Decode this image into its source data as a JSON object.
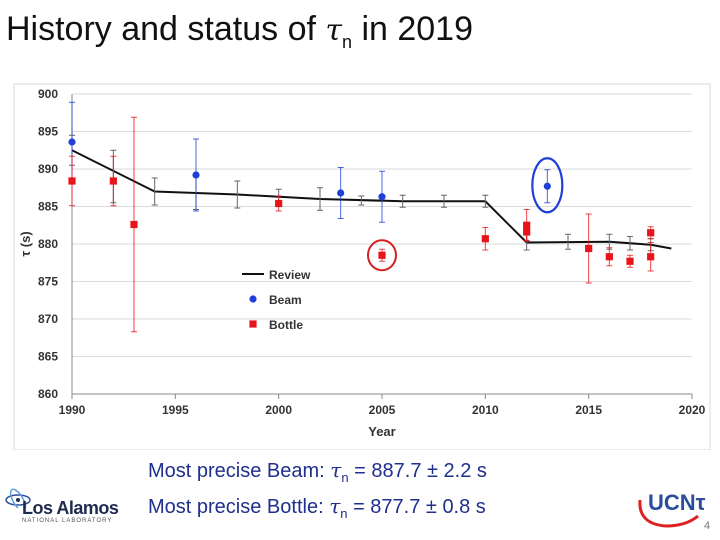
{
  "slide": {
    "title_prefix": "History and status of",
    "title_symbol": "τ",
    "title_sub": "n",
    "title_suffix": "in 2019",
    "page_number": "4"
  },
  "summary": {
    "beam_label": "Most precise Beam:",
    "beam_symbol": "τ",
    "beam_sub": "n",
    "beam_value": "= 887.7 ± 2.2 s",
    "bottle_label": "Most precise Bottle:",
    "bottle_symbol": "τ",
    "bottle_sub": "n",
    "bottle_value": "= 877.7 ± 0.8 s"
  },
  "logos": {
    "lanl_name": "Los Alamos",
    "lanl_sub": "NATIONAL LABORATORY",
    "ucn_text": "UCNτ"
  },
  "colors": {
    "beam": "#1f3fd6",
    "bottle": "#e8141b",
    "review": "#111111",
    "highlight_red": "#d42020",
    "highlight_blue": "#1f3fd6"
  },
  "chart_data": {
    "type": "scatter",
    "title": "",
    "xlabel": "Year",
    "ylabel": "τ (s)",
    "xlim": [
      1990,
      2020
    ],
    "ylim": [
      860,
      900
    ],
    "xticks": [
      1990,
      1995,
      2000,
      2005,
      2010,
      2015,
      2020
    ],
    "yticks": [
      860,
      865,
      870,
      875,
      880,
      885,
      890,
      895,
      900
    ],
    "legend": [
      "Review",
      "Beam",
      "Bottle"
    ],
    "review_line": {
      "name": "Review",
      "x": [
        1990,
        1994,
        1998,
        2002,
        2006,
        2010,
        2012,
        2016,
        2018,
        2019
      ],
      "y": [
        892.5,
        887.0,
        886.6,
        886.0,
        885.7,
        885.7,
        880.2,
        880.3,
        879.9,
        879.4
      ]
    },
    "review_points": {
      "x": [
        1990,
        1992,
        1994,
        1996,
        1998,
        2000,
        2002,
        2004,
        2006,
        2008,
        2010,
        2012,
        2014,
        2016,
        2017,
        2018
      ],
      "y": [
        892.5,
        889.0,
        887.0,
        886.8,
        886.6,
        886.5,
        886.0,
        885.8,
        885.7,
        885.7,
        885.7,
        880.2,
        880.3,
        880.3,
        880.1,
        879.9
      ],
      "err": [
        2.0,
        3.5,
        1.8,
        2.2,
        1.8,
        0.8,
        1.5,
        0.6,
        0.8,
        0.8,
        0.8,
        1.0,
        1.0,
        1.0,
        0.9,
        0.8
      ]
    },
    "series": [
      {
        "name": "Beam",
        "x": [
          1990,
          1996,
          2003,
          2005,
          2013
        ],
        "y": [
          893.6,
          889.2,
          886.8,
          886.3,
          887.7
        ],
        "err": [
          5.3,
          4.8,
          3.4,
          3.4,
          2.2
        ]
      },
      {
        "name": "Bottle",
        "x": [
          1990,
          1992,
          1993,
          2000,
          2005,
          2010,
          2012,
          2012,
          2015,
          2016,
          2017,
          2018,
          2018
        ],
        "y": [
          888.4,
          888.4,
          882.6,
          885.4,
          878.5,
          880.7,
          881.6,
          882.5,
          879.4,
          878.3,
          877.7,
          878.3,
          881.5
        ],
        "err": [
          3.3,
          3.3,
          14.3,
          1.0,
          0.8,
          1.5,
          1.1,
          2.1,
          4.6,
          1.2,
          0.8,
          1.9,
          0.8
        ]
      }
    ],
    "highlighted": [
      "Bottle 2005",
      "Beam 2013"
    ]
  }
}
